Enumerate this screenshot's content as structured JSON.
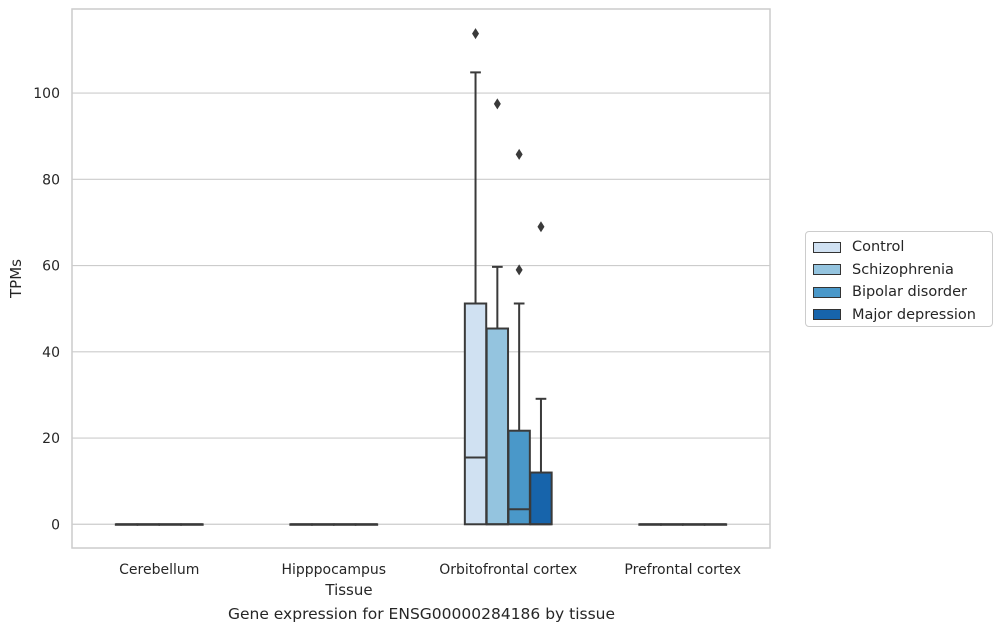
{
  "chart_data": {
    "type": "box",
    "title": "",
    "caption": "Gene expression for ENSG00000284186 by tissue",
    "xlabel": "Tissue",
    "ylabel": "TPMs",
    "ylim": [
      -5.5,
      119.5
    ],
    "yticks": [
      0,
      20,
      40,
      60,
      80,
      100
    ],
    "grid": "horizontal",
    "legend_position": "right",
    "categories": [
      "Cerebellum",
      "Hipppocampus",
      "Orbitofrontal cortex",
      "Prefrontal cortex"
    ],
    "series": [
      {
        "name": "Control",
        "color": "#d0e1f2",
        "boxes": [
          {
            "category": "Cerebellum",
            "q1": 0,
            "median": 0,
            "q3": 0,
            "whisker_low": 0,
            "whisker_high": 0,
            "outliers": []
          },
          {
            "category": "Hipppocampus",
            "q1": 0,
            "median": 0,
            "q3": 0,
            "whisker_low": 0,
            "whisker_high": 0,
            "outliers": []
          },
          {
            "category": "Orbitofrontal cortex",
            "q1": 0,
            "median": 15.5,
            "q3": 51.2,
            "whisker_low": 0,
            "whisker_high": 104.8,
            "outliers": [
              113.8
            ]
          },
          {
            "category": "Prefrontal cortex",
            "q1": 0,
            "median": 0,
            "q3": 0,
            "whisker_low": 0,
            "whisker_high": 0,
            "outliers": []
          }
        ]
      },
      {
        "name": "Schizophrenia",
        "color": "#94c4df",
        "boxes": [
          {
            "category": "Cerebellum",
            "q1": 0,
            "median": 0,
            "q3": 0,
            "whisker_low": 0,
            "whisker_high": 0,
            "outliers": []
          },
          {
            "category": "Hipppocampus",
            "q1": 0,
            "median": 0,
            "q3": 0,
            "whisker_low": 0,
            "whisker_high": 0,
            "outliers": []
          },
          {
            "category": "Orbitofrontal cortex",
            "q1": 0,
            "median": 0,
            "q3": 45.4,
            "whisker_low": 0,
            "whisker_high": 59.7,
            "outliers": [
              97.5
            ]
          },
          {
            "category": "Prefrontal cortex",
            "q1": 0,
            "median": 0,
            "q3": 0,
            "whisker_low": 0,
            "whisker_high": 0,
            "outliers": []
          }
        ]
      },
      {
        "name": "Bipolar disorder",
        "color": "#4a98c9",
        "boxes": [
          {
            "category": "Cerebellum",
            "q1": 0,
            "median": 0,
            "q3": 0,
            "whisker_low": 0,
            "whisker_high": 0,
            "outliers": []
          },
          {
            "category": "Hipppocampus",
            "q1": 0,
            "median": 0,
            "q3": 0,
            "whisker_low": 0,
            "whisker_high": 0,
            "outliers": []
          },
          {
            "category": "Orbitofrontal cortex",
            "q1": 0,
            "median": 3.5,
            "q3": 21.7,
            "whisker_low": 0,
            "whisker_high": 51.2,
            "outliers": [
              59.0,
              85.8
            ]
          },
          {
            "category": "Prefrontal cortex",
            "q1": 0,
            "median": 0,
            "q3": 0,
            "whisker_low": 0,
            "whisker_high": 0,
            "outliers": []
          }
        ]
      },
      {
        "name": "Major depression",
        "color": "#1764ab",
        "boxes": [
          {
            "category": "Cerebellum",
            "q1": 0,
            "median": 0,
            "q3": 0,
            "whisker_low": 0,
            "whisker_high": 0,
            "outliers": []
          },
          {
            "category": "Hipppocampus",
            "q1": 0,
            "median": 0,
            "q3": 0,
            "whisker_low": 0,
            "whisker_high": 0,
            "outliers": []
          },
          {
            "category": "Orbitofrontal cortex",
            "q1": 0,
            "median": 0,
            "q3": 12.0,
            "whisker_low": 0,
            "whisker_high": 29.1,
            "outliers": [
              69.0
            ]
          },
          {
            "category": "Prefrontal cortex",
            "q1": 0,
            "median": 0,
            "q3": 0,
            "whisker_low": 0,
            "whisker_high": 0,
            "outliers": []
          }
        ]
      }
    ]
  }
}
